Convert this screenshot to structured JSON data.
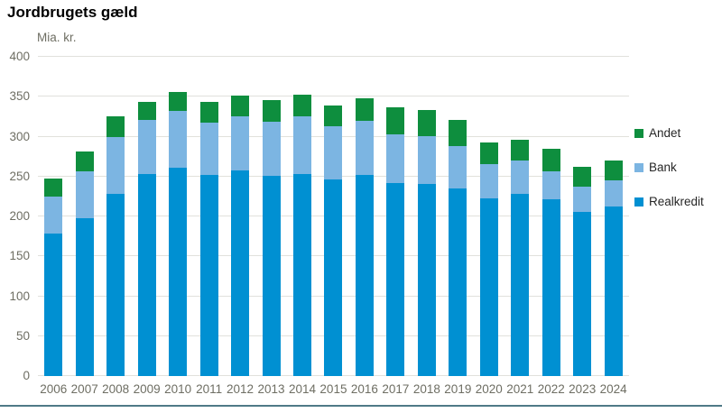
{
  "title": "Jordbrugets gæld",
  "y_axis": {
    "unit_label": "Mia. kr.",
    "ticks": [
      400,
      350,
      300,
      250,
      200,
      150,
      100,
      50,
      0
    ],
    "max": 400
  },
  "legend": {
    "position": "right",
    "items": [
      {
        "label": "Andet",
        "color": "#0e8e3e"
      },
      {
        "label": "Bank",
        "color": "#7cb5e2"
      },
      {
        "label": "Realkredit",
        "color": "#0090d2"
      }
    ]
  },
  "colors": {
    "realkredit": "#0090d2",
    "bank": "#7cb5e2",
    "andet": "#0e8e3e",
    "gridline": "#e1e1dc",
    "axis_text": "#6e6e63",
    "bottom_rule": "#4f7a87"
  },
  "chart_data": {
    "type": "bar",
    "stacked": true,
    "title": "Jordbrugets gæld",
    "ylabel": "Mia. kr.",
    "xlabel": "",
    "ylim": [
      0,
      400
    ],
    "grid": true,
    "legend_position": "right",
    "categories": [
      "2006",
      "2007",
      "2008",
      "2009",
      "2010",
      "2011",
      "2012",
      "2013",
      "2014",
      "2015",
      "2016",
      "2017",
      "2018",
      "2019",
      "2020",
      "2021",
      "2022",
      "2023",
      "2024"
    ],
    "series": [
      {
        "name": "Realkredit",
        "color": "#0090d2",
        "values": [
          178,
          198,
          228,
          253,
          261,
          252,
          258,
          251,
          253,
          246,
          252,
          242,
          241,
          235,
          223,
          228,
          221,
          206,
          213
        ]
      },
      {
        "name": "Bank",
        "color": "#7cb5e2",
        "values": [
          47,
          59,
          71,
          68,
          71,
          66,
          67,
          68,
          72,
          67,
          68,
          61,
          60,
          53,
          43,
          42,
          36,
          31,
          32
        ]
      },
      {
        "name": "Andet",
        "color": "#0e8e3e",
        "values": [
          23,
          24,
          26,
          22,
          24,
          25,
          27,
          27,
          28,
          26,
          28,
          34,
          32,
          33,
          27,
          26,
          28,
          25,
          25
        ]
      }
    ],
    "totals": [
      248,
      281,
      325,
      343,
      356,
      343,
      352,
      346,
      353,
      339,
      348,
      337,
      333,
      321,
      293,
      296,
      285,
      262,
      270
    ]
  }
}
